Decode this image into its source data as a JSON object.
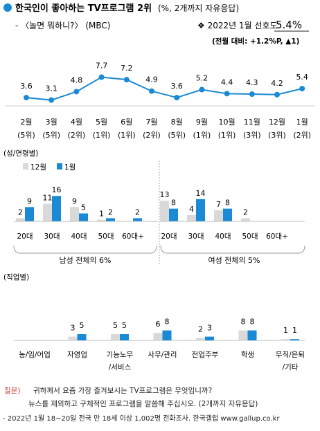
{
  "header": {
    "title": "한국인이 좋아하는 TV프로그램 2위",
    "title_note": "(%, 2개까지 자유응답)",
    "program": "- 〈놀면 뭐하니?〉 (MBC)",
    "pref_label": "❖ 2022년 1월 선호도:",
    "pref_value": "5.4%",
    "change": "(전월 대비: +1.2%P, ▲1)"
  },
  "colors": {
    "accent": "#1a8ad4",
    "dec_bar": "#d9d9d9",
    "line": "#1a8ad4"
  },
  "chart_data": [
    {
      "type": "line",
      "categories": [
        "2월",
        "3월",
        "4월",
        "5월",
        "6월",
        "7월",
        "8월",
        "9월",
        "10월",
        "11월",
        "12월",
        "1월"
      ],
      "ranks": [
        "(5위)",
        "(5위)",
        "(2위)",
        "(1위)",
        "(1위)",
        "(2위)",
        "(5위)",
        "(1위)",
        "(1위)",
        "(3위)",
        "(3위)",
        "(2위)"
      ],
      "values": [
        3.6,
        3.1,
        4.8,
        7.7,
        7.2,
        4.9,
        3.6,
        5.2,
        4.4,
        4.3,
        4.2,
        5.4
      ],
      "ylim": [
        0,
        10
      ]
    },
    {
      "type": "bar",
      "title": "(성/연령별)",
      "legend": [
        "12월",
        "1월"
      ],
      "groups": [
        {
          "label": "남성 전체의 6%",
          "categories": [
            "20대",
            "30대",
            "40대",
            "50대",
            "60대+"
          ],
          "series": [
            {
              "name": "12월",
              "values": [
                2,
                11,
                9,
                1,
                null
              ]
            },
            {
              "name": "1월",
              "values": [
                9,
                16,
                5,
                2,
                2
              ]
            }
          ]
        },
        {
          "label": "여성 전체의 5%",
          "categories": [
            "20대",
            "30대",
            "40대",
            "50대",
            "60대+"
          ],
          "series": [
            {
              "name": "12월",
              "values": [
                13,
                4,
                7,
                2,
                null
              ]
            },
            {
              "name": "1월",
              "values": [
                8,
                14,
                8,
                null,
                null
              ]
            }
          ]
        }
      ]
    },
    {
      "type": "bar",
      "title": "(직업별)",
      "categories": [
        "농/임/어업",
        "자영업",
        "기능노무\n/서비스",
        "사무/관리",
        "전업주부",
        "학생",
        "무직/은퇴\n/기타"
      ],
      "series": [
        {
          "name": "12월",
          "values": [
            null,
            3,
            5,
            6,
            2,
            8,
            1
          ]
        },
        {
          "name": "1월",
          "values": [
            null,
            5,
            5,
            8,
            3,
            8,
            1
          ]
        }
      ]
    }
  ],
  "footer": {
    "q_label": "질문)",
    "q_line1": "귀하께서 요즘 가장 즐겨보시는 TV프로그램은 무엇입니까?",
    "q_line2": "뉴스를 제외하고 구체적인 프로그램을 말씀해 주십시오. (2개까지 자유응답)",
    "source": "- 2022년 1월 18~20일 전국 만 18세 이상 1,002명 전화조사. 한국갤럽 www.gallup.co.kr"
  }
}
